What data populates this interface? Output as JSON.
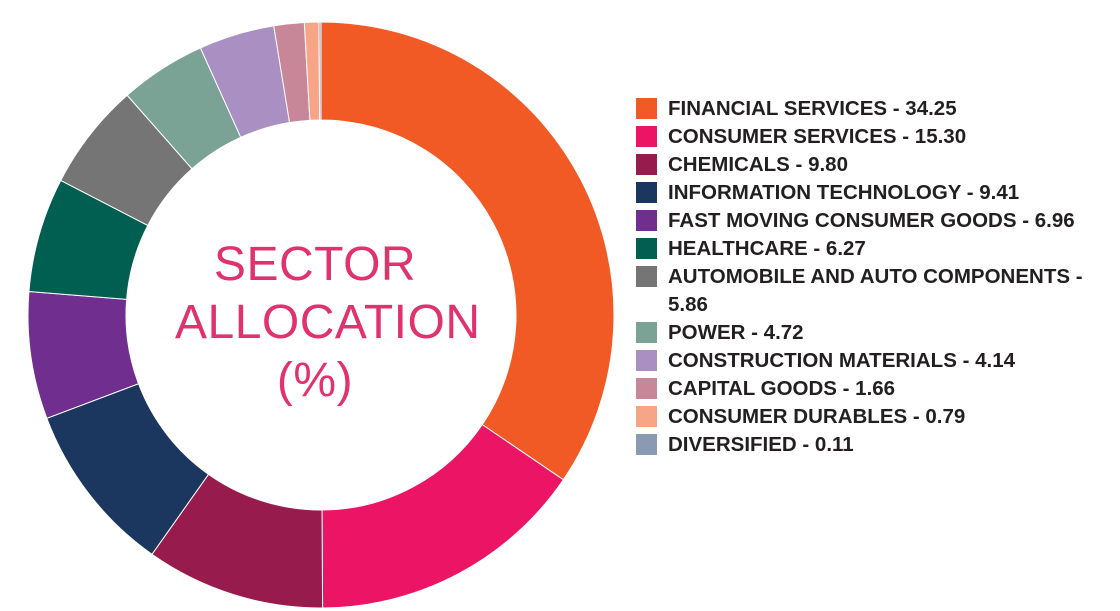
{
  "chart_data": {
    "type": "pie",
    "donut": true,
    "title_lines": [
      "SECTOR",
      "ALLOCATION",
      "(%)"
    ],
    "legend_position": "right",
    "slices": [
      {
        "label": "FINANCIAL SERVICES - 34.25",
        "value": 34.25,
        "color": "#f15a24"
      },
      {
        "label": "CONSUMER SERVICES - 15.30",
        "value": 15.3,
        "color": "#ec1565"
      },
      {
        "label": "CHEMICALS - 9.80",
        "value": 9.8,
        "color": "#981b4e"
      },
      {
        "label": "INFORMATION TECHNOLOGY - 9.41",
        "value": 9.41,
        "color": "#1b365f"
      },
      {
        "label": "FAST MOVING CONSUMER GOODS - 6.96",
        "value": 6.96,
        "color": "#702f8f"
      },
      {
        "label": "HEALTHCARE - 6.27",
        "value": 6.27,
        "color": "#005f50"
      },
      {
        "label": "AUTOMOBILE AND AUTO COMPONENTS - 5.86",
        "value": 5.86,
        "color": "#757575"
      },
      {
        "label": "POWER - 4.72",
        "value": 4.72,
        "color": "#7aa396"
      },
      {
        "label": "CONSTRUCTION MATERIALS - 4.14",
        "value": 4.14,
        "color": "#a98fc2"
      },
      {
        "label": "CAPITAL GOODS - 1.66",
        "value": 1.66,
        "color": "#c88798"
      },
      {
        "label": "CONSUMER DURABLES - 0.79",
        "value": 0.79,
        "color": "#f8a486"
      },
      {
        "label": "DIVERSIFIED - 0.11",
        "value": 0.11,
        "color": "#8a9ab3"
      }
    ]
  }
}
